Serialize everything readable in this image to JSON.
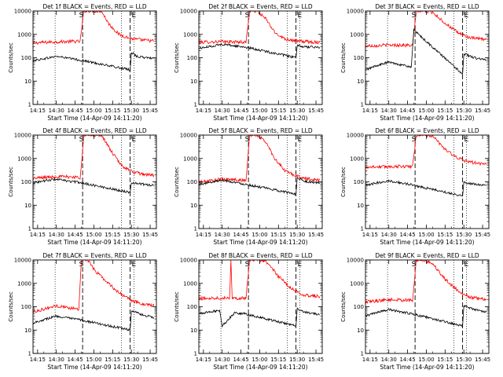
{
  "x_tick_labels": [
    "14:15",
    "14:30",
    "14:45",
    "15:00",
    "15:15",
    "15:30",
    "15:45"
  ],
  "y_tick_labels": [
    "1",
    "10",
    "100",
    "1000",
    "10000"
  ],
  "ylabel": "Counts/sec",
  "xlabel": "Start Time (14-Apr-09 14:11:20)",
  "interval_markers": [
    "S",
    "E"
  ],
  "colors": {
    "events": "#000000",
    "lld": "#ff0000",
    "axes": "#000000"
  },
  "chart_data": [
    {
      "type": "line",
      "title": "Det 1f BLACK = Events, RED = LLD",
      "x_unit": "HH:MM",
      "y_scale": "log",
      "ylim": [
        1,
        10000
      ],
      "xlim": [
        "14:11:20",
        "15:50"
      ],
      "grid": false,
      "dotted_vlines": [
        "14:29",
        "15:22",
        "15:32"
      ],
      "dashed_vlines": [
        "14:51",
        "15:29"
      ],
      "markers": [
        {
          "label": "S",
          "x": "14:50"
        },
        {
          "label": "E",
          "x": "15:32"
        }
      ],
      "series": [
        {
          "color": "red",
          "x": [
            "14:11",
            "14:30",
            "14:45",
            "14:49",
            "14:52",
            "14:56",
            "15:00",
            "15:06",
            "15:12",
            "15:20",
            "15:30",
            "15:40",
            "15:48"
          ],
          "y": [
            430,
            480,
            500,
            490,
            10000,
            10000,
            10000,
            10000,
            2800,
            1000,
            650,
            560,
            520
          ]
        },
        {
          "color": "black",
          "x": [
            "14:11",
            "14:20",
            "14:30",
            "14:40",
            "14:48",
            "14:50",
            "15:29",
            "15:30",
            "15:35",
            "15:42",
            "15:48"
          ],
          "y": [
            75,
            90,
            115,
            95,
            80,
            78,
            30,
            170,
            110,
            100,
            95
          ]
        }
      ]
    },
    {
      "type": "line",
      "title": "Det 2f BLACK = Events, RED = LLD",
      "x_unit": "HH:MM",
      "y_scale": "log",
      "ylim": [
        1,
        10000
      ],
      "xlim": [
        "14:11:20",
        "15:50"
      ],
      "grid": false,
      "dotted_vlines": [
        "14:29",
        "15:22",
        "15:32"
      ],
      "dashed_vlines": [
        "14:51",
        "15:29"
      ],
      "markers": [
        {
          "label": "S",
          "x": "14:50"
        },
        {
          "label": "E",
          "x": "15:32"
        }
      ],
      "series": [
        {
          "color": "red",
          "x": [
            "14:11",
            "14:30",
            "14:45",
            "14:49",
            "14:52",
            "14:58",
            "15:05",
            "15:12",
            "15:20",
            "15:30",
            "15:40",
            "15:48"
          ],
          "y": [
            460,
            490,
            470,
            460,
            10000,
            10000,
            4500,
            1200,
            650,
            520,
            480,
            450
          ]
        },
        {
          "color": "black",
          "x": [
            "14:11",
            "14:20",
            "14:30",
            "14:40",
            "14:48",
            "15:29",
            "15:30",
            "15:38",
            "15:48"
          ],
          "y": [
            250,
            300,
            380,
            320,
            290,
            100,
            320,
            290,
            280
          ]
        }
      ]
    },
    {
      "type": "line",
      "title": "Det 3f BLACK = Events, RED = LLD",
      "x_unit": "HH:MM",
      "y_scale": "log",
      "ylim": [
        1,
        10000
      ],
      "xlim": [
        "14:11:20",
        "15:50"
      ],
      "grid": false,
      "dotted_vlines": [
        "14:29",
        "15:22",
        "15:32"
      ],
      "dashed_vlines": [
        "14:51",
        "15:29"
      ],
      "markers": [
        {
          "label": "S",
          "x": "14:50"
        },
        {
          "label": "E",
          "x": "15:32"
        }
      ],
      "series": [
        {
          "color": "red",
          "x": [
            "14:11",
            "14:30",
            "14:45",
            "14:49",
            "14:52",
            "14:58",
            "15:05",
            "15:15",
            "15:25",
            "15:35",
            "15:48"
          ],
          "y": [
            320,
            350,
            340,
            330,
            10000,
            10000,
            9000,
            3000,
            1200,
            700,
            600
          ]
        },
        {
          "color": "black",
          "x": [
            "14:11",
            "14:20",
            "14:30",
            "14:40",
            "14:48",
            "14:50",
            "15:29",
            "15:30",
            "15:38",
            "15:48"
          ],
          "y": [
            30,
            45,
            65,
            50,
            40,
            1500,
            20,
            150,
            100,
            80
          ]
        }
      ]
    },
    {
      "type": "line",
      "title": "Det 4f BLACK = Events, RED = LLD",
      "x_unit": "HH:MM",
      "y_scale": "log",
      "ylim": [
        1,
        10000
      ],
      "xlim": [
        "14:11:20",
        "15:50"
      ],
      "grid": false,
      "dotted_vlines": [
        "14:29",
        "15:22",
        "15:32"
      ],
      "dashed_vlines": [
        "14:51",
        "15:29"
      ],
      "markers": [
        {
          "label": "S",
          "x": "14:50"
        },
        {
          "label": "E",
          "x": "15:32"
        }
      ],
      "series": [
        {
          "color": "red",
          "x": [
            "14:11",
            "14:30",
            "14:45",
            "14:49",
            "14:52",
            "14:56",
            "15:00",
            "15:06",
            "15:14",
            "15:22",
            "15:32",
            "15:40",
            "15:48"
          ],
          "y": [
            140,
            170,
            160,
            150,
            9000,
            10000,
            10000,
            10000,
            2000,
            500,
            250,
            210,
            190
          ]
        },
        {
          "color": "black",
          "x": [
            "14:11",
            "14:20",
            "14:30",
            "14:40",
            "14:48",
            "15:29",
            "15:30",
            "15:38",
            "15:48"
          ],
          "y": [
            90,
            110,
            130,
            105,
            95,
            35,
            95,
            80,
            70
          ]
        }
      ]
    },
    {
      "type": "line",
      "title": "Det 5f BLACK = Events, RED = LLD",
      "x_unit": "HH:MM",
      "y_scale": "log",
      "ylim": [
        1,
        10000
      ],
      "xlim": [
        "14:11:20",
        "15:50"
      ],
      "grid": false,
      "dotted_vlines": [
        "14:29",
        "15:22",
        "15:32"
      ],
      "dashed_vlines": [
        "14:51",
        "15:29"
      ],
      "markers": [
        {
          "label": "S",
          "x": "14:50"
        },
        {
          "label": "E",
          "x": "15:32"
        }
      ],
      "series": [
        {
          "color": "red",
          "x": [
            "14:11",
            "14:30",
            "14:45",
            "14:49",
            "14:52",
            "14:58",
            "15:05",
            "15:12",
            "15:20",
            "15:30",
            "15:40",
            "15:48"
          ],
          "y": [
            95,
            130,
            120,
            110,
            10000,
            10000,
            5000,
            1000,
            300,
            170,
            130,
            120
          ]
        },
        {
          "color": "black",
          "x": [
            "14:11",
            "14:20",
            "14:30",
            "14:40",
            "14:48",
            "15:29",
            "15:30",
            "15:38",
            "15:48"
          ],
          "y": [
            75,
            95,
            120,
            95,
            80,
            30,
            150,
            100,
            90
          ]
        }
      ]
    },
    {
      "type": "line",
      "title": "Det 6f BLACK = Events, RED = LLD",
      "x_unit": "HH:MM",
      "y_scale": "log",
      "ylim": [
        1,
        10000
      ],
      "xlim": [
        "14:11:20",
        "15:50"
      ],
      "grid": false,
      "dotted_vlines": [
        "14:29",
        "15:22",
        "15:32"
      ],
      "dashed_vlines": [
        "14:51",
        "15:29"
      ],
      "markers": [
        {
          "label": "S",
          "x": "14:50"
        },
        {
          "label": "E",
          "x": "15:32"
        }
      ],
      "series": [
        {
          "color": "red",
          "x": [
            "14:11",
            "14:30",
            "14:45",
            "14:49",
            "14:52",
            "14:58",
            "15:05",
            "15:15",
            "15:25",
            "15:35",
            "15:48"
          ],
          "y": [
            430,
            450,
            460,
            450,
            10000,
            10000,
            9000,
            2500,
            1000,
            700,
            550
          ]
        },
        {
          "color": "black",
          "x": [
            "14:11",
            "14:20",
            "14:30",
            "14:40",
            "14:48",
            "15:29",
            "15:30",
            "15:38",
            "15:48"
          ],
          "y": [
            65,
            90,
            110,
            90,
            75,
            25,
            95,
            80,
            70
          ]
        }
      ]
    },
    {
      "type": "line",
      "title": "Det 7f BLACK = Events, RED = LLD",
      "x_unit": "HH:MM",
      "y_scale": "log",
      "ylim": [
        1,
        10000
      ],
      "xlim": [
        "14:11:20",
        "15:50"
      ],
      "grid": false,
      "dotted_vlines": [
        "14:29",
        "15:22",
        "15:32"
      ],
      "dashed_vlines": [
        "14:51",
        "15:29"
      ],
      "markers": [
        {
          "label": "S",
          "x": "14:50"
        },
        {
          "label": "E",
          "x": "15:32"
        }
      ],
      "series": [
        {
          "color": "red",
          "x": [
            "14:11",
            "14:20",
            "14:30",
            "14:40",
            "14:48",
            "14:50",
            "14:55",
            "15:00",
            "15:10",
            "15:20",
            "15:30",
            "15:40",
            "15:48"
          ],
          "y": [
            60,
            80,
            110,
            90,
            80,
            10000,
            10000,
            4000,
            1200,
            400,
            180,
            130,
            110
          ]
        },
        {
          "color": "black",
          "x": [
            "14:11",
            "14:20",
            "14:30",
            "14:40",
            "14:48",
            "15:29",
            "15:30",
            "15:38",
            "15:48"
          ],
          "y": [
            20,
            28,
            40,
            32,
            28,
            10,
            70,
            45,
            35
          ]
        }
      ]
    },
    {
      "type": "line",
      "title": "Det 8f BLACK = Events, RED = LLD",
      "x_unit": "HH:MM",
      "y_scale": "log",
      "ylim": [
        1,
        10000
      ],
      "xlim": [
        "14:11:20",
        "15:50"
      ],
      "grid": false,
      "dotted_vlines": [
        "14:29",
        "15:22",
        "15:32"
      ],
      "dashed_vlines": [
        "14:51",
        "15:29"
      ],
      "markers": [
        {
          "label": "S",
          "x": "14:50"
        },
        {
          "label": "E",
          "x": "15:32"
        }
      ],
      "series": [
        {
          "color": "red",
          "x": [
            "14:11",
            "14:25",
            "14:36",
            "14:37",
            "14:38",
            "14:45",
            "14:49",
            "14:52",
            "14:58",
            "15:05",
            "15:15",
            "15:25",
            "15:35",
            "15:48"
          ],
          "y": [
            220,
            240,
            240,
            10000,
            240,
            230,
            230,
            10000,
            10000,
            9000,
            2000,
            600,
            320,
            280
          ]
        },
        {
          "color": "black",
          "x": [
            "14:11",
            "14:20",
            "14:28",
            "14:30",
            "14:40",
            "14:48",
            "15:29",
            "15:30",
            "15:38",
            "15:48"
          ],
          "y": [
            50,
            60,
            70,
            15,
            55,
            50,
            15,
            80,
            55,
            45
          ]
        }
      ]
    },
    {
      "type": "line",
      "title": "Det 9f BLACK = Events, RED = LLD",
      "x_unit": "HH:MM",
      "y_scale": "log",
      "ylim": [
        1,
        10000
      ],
      "xlim": [
        "14:11:20",
        "15:50"
      ],
      "grid": false,
      "dotted_vlines": [
        "14:29",
        "15:22",
        "15:32"
      ],
      "dashed_vlines": [
        "14:51",
        "15:29"
      ],
      "markers": [
        {
          "label": "S",
          "x": "14:50"
        },
        {
          "label": "E",
          "x": "15:32"
        }
      ],
      "series": [
        {
          "color": "red",
          "x": [
            "14:11",
            "14:30",
            "14:45",
            "14:49",
            "14:52",
            "14:58",
            "15:05",
            "15:15",
            "15:25",
            "15:35",
            "15:48"
          ],
          "y": [
            160,
            200,
            190,
            180,
            10000,
            10000,
            7000,
            1500,
            500,
            250,
            200
          ]
        },
        {
          "color": "black",
          "x": [
            "14:11",
            "14:20",
            "14:30",
            "14:40",
            "14:48",
            "15:29",
            "15:30",
            "15:38",
            "15:48"
          ],
          "y": [
            40,
            55,
            75,
            60,
            50,
            15,
            110,
            75,
            60
          ]
        }
      ]
    }
  ]
}
